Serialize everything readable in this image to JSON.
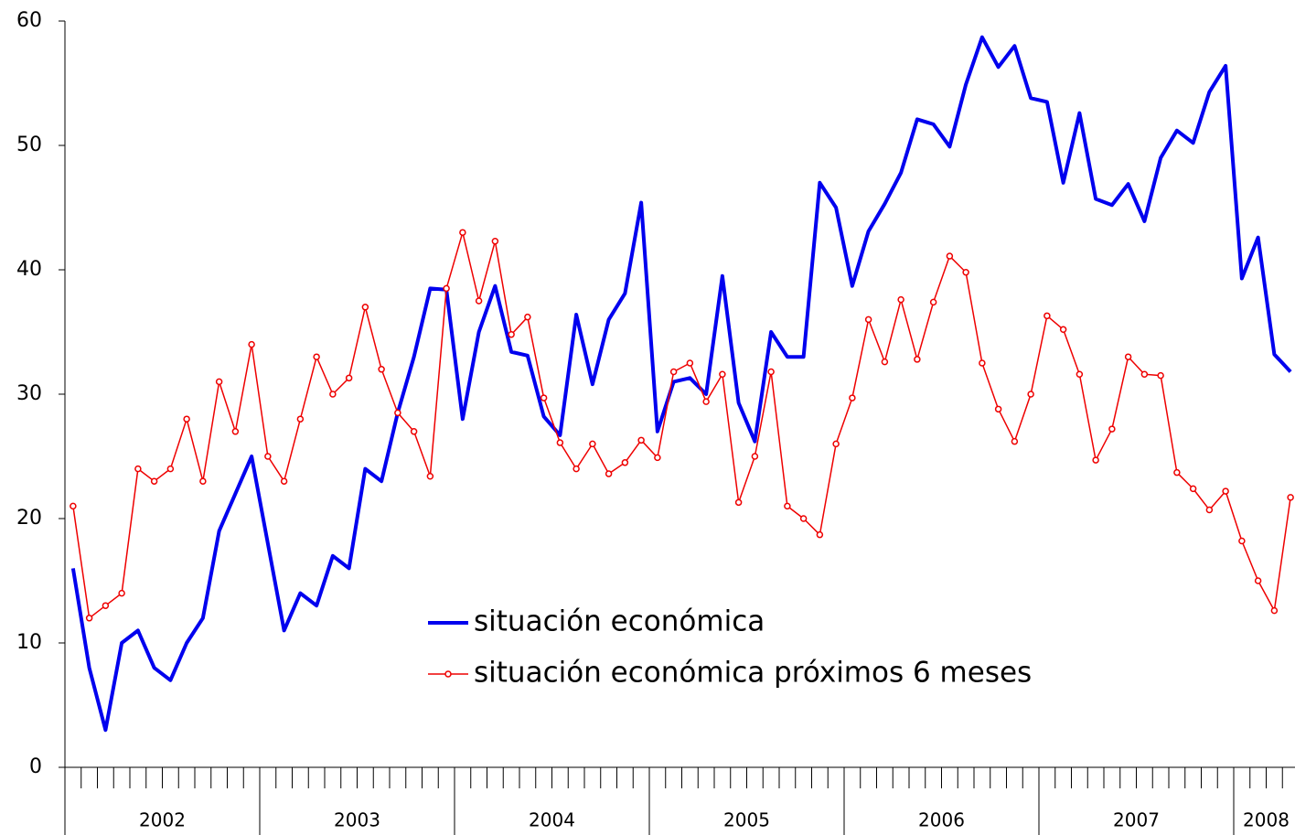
{
  "chart_data": {
    "type": "line",
    "categories": [
      "2002",
      "2002",
      "2002",
      "2002",
      "2002",
      "2002",
      "2002",
      "2002",
      "2002",
      "2002",
      "2002",
      "2002",
      "2003",
      "2003",
      "2003",
      "2003",
      "2003",
      "2003",
      "2003",
      "2003",
      "2003",
      "2003",
      "2003",
      "2003",
      "2004",
      "2004",
      "2004",
      "2004",
      "2004",
      "2004",
      "2004",
      "2004",
      "2004",
      "2004",
      "2004",
      "2004",
      "2005",
      "2005",
      "2005",
      "2005",
      "2005",
      "2005",
      "2005",
      "2005",
      "2005",
      "2005",
      "2005",
      "2005",
      "2006",
      "2006",
      "2006",
      "2006",
      "2006",
      "2006",
      "2006",
      "2006",
      "2006",
      "2006",
      "2006",
      "2006",
      "2007",
      "2007",
      "2007",
      "2007",
      "2007",
      "2007",
      "2007",
      "2007",
      "2007",
      "2007",
      "2007",
      "2007",
      "2008",
      "2008",
      "2008",
      "2008"
    ],
    "series": [
      {
        "name": "situación económica",
        "color": "#0000ee",
        "marker": false,
        "values": [
          16,
          8,
          3,
          10,
          11,
          8,
          7,
          10,
          12,
          19,
          22,
          25,
          18,
          11,
          14,
          13,
          17,
          16,
          24,
          23,
          28.5,
          33,
          38.5,
          38.4,
          28,
          35,
          38.7,
          33.4,
          33.1,
          28.2,
          26.7,
          36.4,
          30.8,
          36,
          38.1,
          45.4,
          27,
          31,
          31.3,
          30,
          39.5,
          29.3,
          26.2,
          35,
          33,
          33,
          47,
          45,
          38.7,
          43.1,
          45.3,
          47.8,
          52.1,
          51.7,
          49.9,
          54.9,
          58.7,
          56.3,
          58,
          53.8,
          53.5,
          47,
          52.6,
          45.7,
          45.2,
          46.9,
          43.9,
          49,
          51.2,
          50.2,
          54.3,
          56.4,
          39.3,
          42.6,
          33.2,
          31.8
        ]
      },
      {
        "name": "situación económica próximos 6 meses",
        "color": "#ee0000",
        "marker": true,
        "values": [
          21,
          12,
          13,
          14,
          24,
          23,
          24,
          28,
          23,
          31,
          27,
          34,
          25,
          23,
          28,
          33,
          30,
          31.3,
          37,
          32,
          28.5,
          27,
          23.4,
          38.5,
          43,
          37.5,
          42.3,
          34.8,
          36.2,
          29.7,
          26.1,
          24,
          26,
          23.6,
          24.5,
          26.3,
          24.9,
          31.8,
          32.5,
          29.4,
          31.6,
          21.3,
          25,
          31.8,
          21,
          20,
          18.7,
          26,
          29.7,
          36,
          32.6,
          37.6,
          32.8,
          37.4,
          41.1,
          39.8,
          32.5,
          28.8,
          26.2,
          30,
          36.3,
          35.2,
          31.6,
          24.7,
          27.2,
          33,
          31.6,
          31.5,
          23.7,
          22.4,
          20.7,
          22.2,
          18.2,
          15,
          12.6,
          21.7
        ]
      }
    ],
    "ylim": [
      0,
      60
    ],
    "yticks": [
      0,
      10,
      20,
      30,
      40,
      50,
      60
    ],
    "grid": false,
    "legend": "center"
  }
}
